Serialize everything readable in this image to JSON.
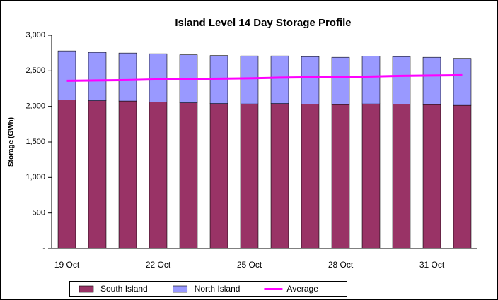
{
  "chart_data": {
    "type": "bar",
    "stacked": true,
    "title": "Island Level 14 Day Storage Profile",
    "y_label": "Storage (GWh)",
    "categories": [
      "19 Oct",
      null,
      null,
      "22 Oct",
      null,
      null,
      "25 Oct",
      null,
      null,
      "28 Oct",
      null,
      null,
      "31 Oct",
      null
    ],
    "series": [
      {
        "name": "South Island",
        "type": "bar",
        "color": "#993366",
        "values": [
          2090,
          2080,
          2075,
          2060,
          2050,
          2040,
          2035,
          2040,
          2030,
          2025,
          2035,
          2030,
          2025,
          2015
        ]
      },
      {
        "name": "North Island",
        "type": "bar",
        "color": "#9999ff",
        "values": [
          690,
          680,
          675,
          680,
          675,
          675,
          675,
          670,
          670,
          665,
          670,
          670,
          665,
          660
        ]
      },
      {
        "name": "Average",
        "type": "line",
        "color": "#ff00ff",
        "values": [
          2360,
          2365,
          2370,
          2380,
          2385,
          2390,
          2395,
          2405,
          2410,
          2415,
          2420,
          2430,
          2435,
          2440
        ]
      }
    ],
    "ylim": [
      0,
      3000
    ],
    "yticks": [
      {
        "value": 0,
        "label": "-"
      },
      500,
      {
        "value": 1000,
        "label": "1,000"
      },
      {
        "value": 1500,
        "label": "1,500"
      },
      {
        "value": 2000,
        "label": "2,000"
      },
      {
        "value": 2500,
        "label": "2,500"
      },
      {
        "value": 3000,
        "label": "3,000"
      }
    ],
    "legend": "bottom"
  }
}
